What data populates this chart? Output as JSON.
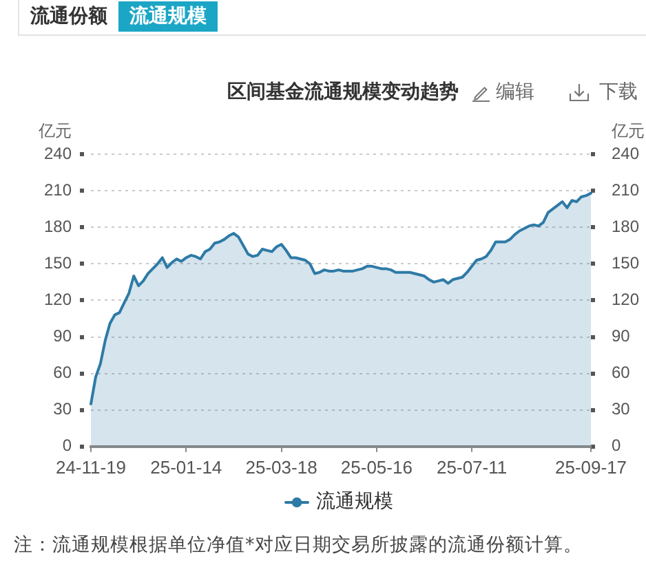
{
  "chart_data": {
    "type": "area",
    "title": "区间基金流通规模变动趋势",
    "ylabel": "亿元",
    "y2label": "亿元",
    "categories": [
      "24-11-19",
      null,
      null,
      null,
      null,
      null,
      null,
      null,
      null,
      null,
      null,
      null,
      null,
      null,
      null,
      null,
      null,
      null,
      null,
      null,
      "25-01-14",
      null,
      null,
      null,
      null,
      null,
      null,
      null,
      null,
      null,
      null,
      null,
      null,
      null,
      null,
      null,
      null,
      null,
      null,
      null,
      "25-03-18",
      null,
      null,
      null,
      null,
      null,
      null,
      null,
      null,
      null,
      null,
      null,
      null,
      null,
      null,
      null,
      null,
      null,
      null,
      null,
      "25-05-16",
      null,
      null,
      null,
      null,
      null,
      null,
      null,
      null,
      null,
      null,
      null,
      null,
      null,
      null,
      null,
      null,
      null,
      null,
      null,
      "25-07-11",
      null,
      null,
      null,
      null,
      null,
      null,
      null,
      null,
      null,
      null,
      null,
      null,
      null,
      null,
      null,
      null,
      null,
      null,
      null,
      null,
      null,
      null,
      null,
      null,
      "25-09-17"
    ],
    "series": [
      {
        "name": "流通规模",
        "color": "#2e7aa6",
        "values": [
          35,
          57,
          68,
          87,
          101,
          108,
          110,
          118,
          126,
          140,
          132,
          136,
          142,
          146,
          150,
          155,
          147,
          151,
          154,
          152,
          155,
          157,
          156,
          154,
          160,
          162,
          167,
          168,
          170,
          173,
          175,
          172,
          165,
          158,
          156,
          157,
          162,
          161,
          160,
          164,
          166,
          161,
          155,
          155,
          154,
          153,
          150,
          142,
          143,
          145,
          144,
          144,
          145,
          144,
          144,
          144,
          145,
          146,
          148,
          148,
          147,
          146,
          146,
          145,
          143,
          143,
          143,
          143,
          142,
          141,
          140,
          137,
          135,
          136,
          137,
          134,
          137,
          138,
          139,
          143,
          148,
          153,
          154,
          156,
          161,
          168,
          168,
          168,
          170,
          174,
          177,
          179,
          181,
          182,
          181,
          184,
          192,
          195,
          198,
          201,
          196,
          202,
          201,
          205,
          206,
          208
        ]
      }
    ],
    "ylim": [
      0,
      240
    ],
    "yticks": [
      0,
      30,
      60,
      90,
      120,
      150,
      180,
      210,
      240
    ],
    "y2lim": [
      0,
      240
    ],
    "y2ticks": [
      0,
      30,
      60,
      90,
      120,
      150,
      180,
      210,
      240
    ],
    "grid": "y",
    "legend": "bottom",
    "marker": "none",
    "annotations": [
      "流通份额",
      "流通规模",
      "编辑",
      "下载",
      "注：流通规模根据单位净值*对应日期交易所披露的流通份额计算。"
    ]
  }
}
